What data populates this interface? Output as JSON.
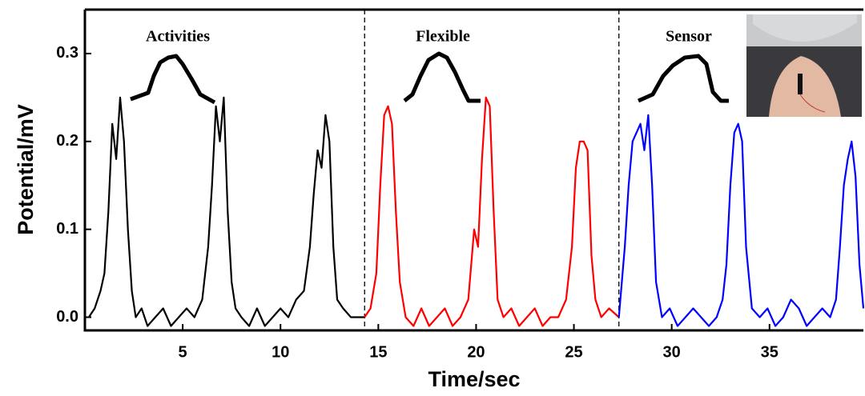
{
  "chart_data": {
    "type": "line",
    "xlabel": "Time/sec",
    "ylabel": "Potential/mV",
    "annotations": [
      "Activities",
      "Flexible",
      "Sensor"
    ],
    "vlines": [
      14.3,
      27.3
    ],
    "xlim": [
      0,
      39.8
    ],
    "ylim": [
      -0.015,
      0.35
    ],
    "xticks": [
      5,
      10,
      15,
      20,
      25,
      30,
      35
    ],
    "yticks": [
      {
        "value": 0,
        "label": "0.0"
      },
      0.1,
      0.2,
      0.3
    ],
    "series": [
      {
        "color": "#000000",
        "x": [
          0.2,
          0.5,
          0.8,
          1.0,
          1.2,
          1.4,
          1.6,
          1.8,
          2.0,
          2.2,
          2.4,
          2.6,
          2.9,
          3.2,
          3.6,
          4.0,
          4.4,
          4.8,
          5.2,
          5.6,
          6.0,
          6.3,
          6.5,
          6.7,
          6.9,
          7.1,
          7.3,
          7.5,
          7.7,
          8.0,
          8.4,
          8.8,
          9.2,
          9.6,
          10.0,
          10.4,
          10.8,
          11.2,
          11.5,
          11.7,
          11.9,
          12.1,
          12.3,
          12.5,
          12.7,
          12.9,
          13.2,
          13.6,
          14.0,
          14.3
        ],
        "values": [
          0.0,
          0.01,
          0.03,
          0.05,
          0.12,
          0.22,
          0.18,
          0.25,
          0.2,
          0.1,
          0.03,
          0.0,
          0.01,
          -0.01,
          0.0,
          0.01,
          -0.01,
          0.0,
          0.01,
          0.0,
          0.02,
          0.08,
          0.15,
          0.24,
          0.2,
          0.25,
          0.12,
          0.04,
          0.01,
          0.0,
          -0.01,
          0.01,
          -0.01,
          0.0,
          0.01,
          0.0,
          0.02,
          0.03,
          0.08,
          0.14,
          0.19,
          0.17,
          0.23,
          0.2,
          0.08,
          0.02,
          0.01,
          0.0,
          0.0,
          0.0
        ]
      },
      {
        "color": "#ff0000",
        "x": [
          14.3,
          14.6,
          14.9,
          15.1,
          15.3,
          15.5,
          15.7,
          15.9,
          16.1,
          16.4,
          16.8,
          17.2,
          17.6,
          18.0,
          18.4,
          18.8,
          19.2,
          19.6,
          19.9,
          20.1,
          20.3,
          20.5,
          20.7,
          20.9,
          21.1,
          21.4,
          21.8,
          22.2,
          22.6,
          23.0,
          23.4,
          23.8,
          24.2,
          24.6,
          24.9,
          25.1,
          25.3,
          25.5,
          25.7,
          25.9,
          26.1,
          26.4,
          26.8,
          27.3
        ],
        "values": [
          0.0,
          0.01,
          0.05,
          0.15,
          0.23,
          0.24,
          0.22,
          0.12,
          0.04,
          0.0,
          -0.01,
          0.01,
          -0.01,
          0.0,
          0.01,
          -0.01,
          0.0,
          0.02,
          0.1,
          0.08,
          0.18,
          0.25,
          0.24,
          0.12,
          0.02,
          0.0,
          0.01,
          -0.01,
          0.0,
          0.01,
          -0.01,
          0.0,
          0.0,
          0.02,
          0.08,
          0.17,
          0.2,
          0.2,
          0.19,
          0.07,
          0.02,
          0.0,
          0.01,
          0.0
        ]
      },
      {
        "color": "#0000ff",
        "x": [
          27.3,
          27.6,
          27.8,
          28.0,
          28.2,
          28.4,
          28.6,
          28.8,
          29.0,
          29.2,
          29.5,
          29.9,
          30.3,
          30.7,
          31.1,
          31.5,
          31.9,
          32.3,
          32.6,
          32.8,
          33.0,
          33.2,
          33.4,
          33.6,
          33.8,
          34.1,
          34.5,
          34.9,
          35.3,
          35.7,
          36.1,
          36.5,
          36.9,
          37.3,
          37.7,
          38.1,
          38.4,
          38.6,
          38.8,
          39.0,
          39.2,
          39.4,
          39.6,
          39.8
        ],
        "values": [
          0.0,
          0.08,
          0.15,
          0.2,
          0.21,
          0.22,
          0.19,
          0.23,
          0.15,
          0.04,
          0.0,
          0.01,
          -0.01,
          0.0,
          0.01,
          0.0,
          -0.01,
          0.0,
          0.02,
          0.06,
          0.15,
          0.21,
          0.22,
          0.2,
          0.08,
          0.01,
          0.0,
          0.01,
          -0.01,
          0.0,
          0.02,
          0.01,
          -0.01,
          0.0,
          0.01,
          0.0,
          0.02,
          0.08,
          0.15,
          0.18,
          0.2,
          0.16,
          0.06,
          0.01
        ]
      }
    ]
  }
}
